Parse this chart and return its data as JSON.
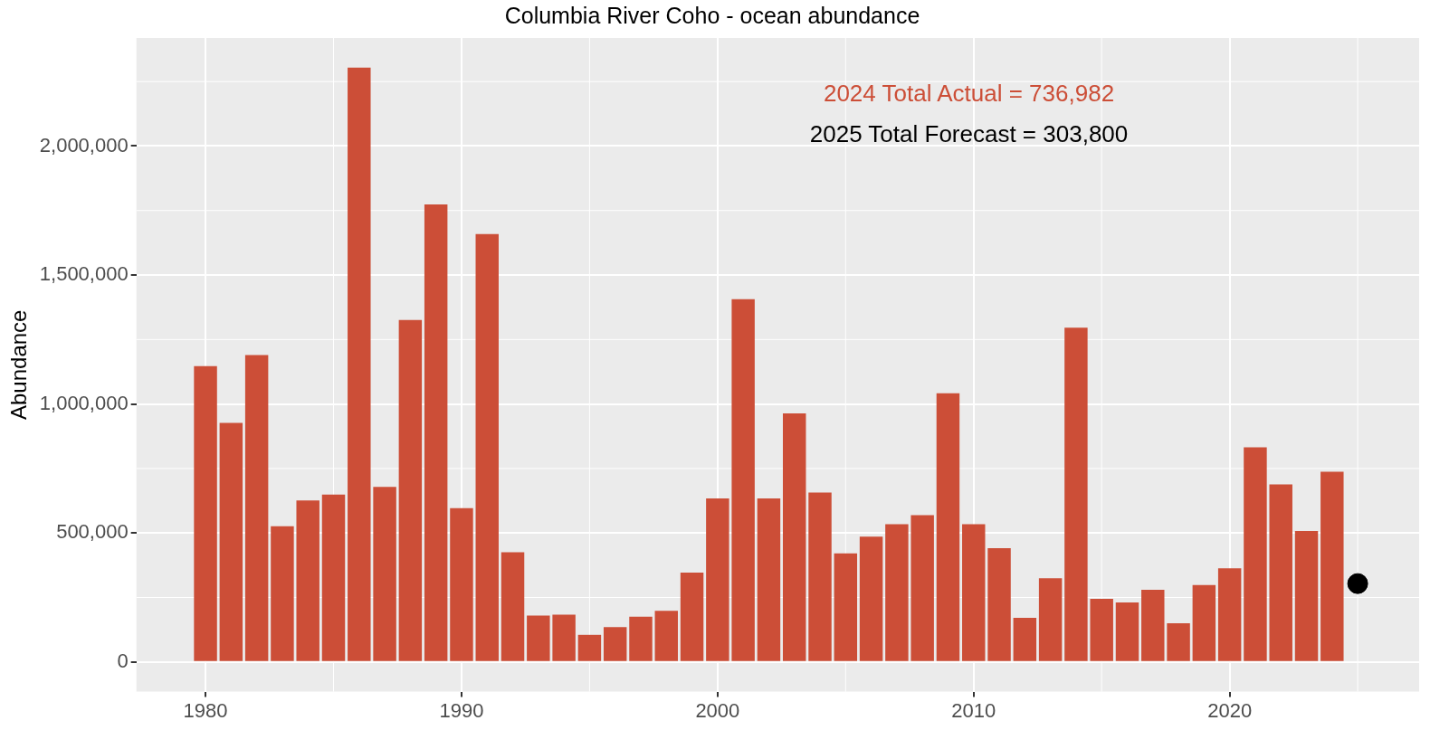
{
  "chart_data": {
    "type": "bar",
    "title": "Columbia River Coho - ocean abundance",
    "ylabel": "Abundance",
    "x": [
      1980,
      1981,
      1982,
      1983,
      1984,
      1985,
      1986,
      1987,
      1988,
      1989,
      1990,
      1991,
      1992,
      1993,
      1994,
      1995,
      1996,
      1997,
      1998,
      1999,
      2000,
      2001,
      2002,
      2003,
      2004,
      2005,
      2006,
      2007,
      2008,
      2009,
      2010,
      2011,
      2012,
      2013,
      2014,
      2015,
      2016,
      2017,
      2018,
      2019,
      2020,
      2021,
      2022,
      2023,
      2024
    ],
    "series": [
      {
        "color": "#cc4e37",
        "values": [
          1147000,
          927000,
          1190000,
          526000,
          626000,
          649000,
          2304000,
          679000,
          1326000,
          1774000,
          596000,
          1659000,
          425000,
          180000,
          183000,
          105000,
          135000,
          175000,
          198000,
          346000,
          634000,
          1406000,
          634000,
          964000,
          657000,
          421000,
          486000,
          534000,
          569000,
          1042000,
          534000,
          441000,
          171000,
          324000,
          1296000,
          245000,
          231000,
          280000,
          150000,
          298000,
          363000,
          832000,
          688000,
          508000,
          736982
        ]
      },
      {
        "type": "scatter",
        "color": "#000000",
        "marker": "circle",
        "x": [
          2025
        ],
        "values": [
          303800
        ]
      }
    ],
    "annotations": [
      "2024 Total Actual = 736,982",
      "2025 Total Forecast = 303,800"
    ],
    "xlim": [
      1977.3,
      2027.4
    ],
    "xticks": [
      1980,
      1990,
      2000,
      2010,
      2020
    ],
    "ylim": [
      -115200,
      2419000
    ],
    "yticks": [
      0,
      {
        "value": 500000,
        "label": "500,000"
      },
      {
        "value": 1000000,
        "label": "1,000,000"
      },
      {
        "value": 1500000,
        "label": "1,500,000"
      },
      {
        "value": 2000000,
        "label": "2,000,000"
      }
    ],
    "grid": true,
    "legend": false
  }
}
